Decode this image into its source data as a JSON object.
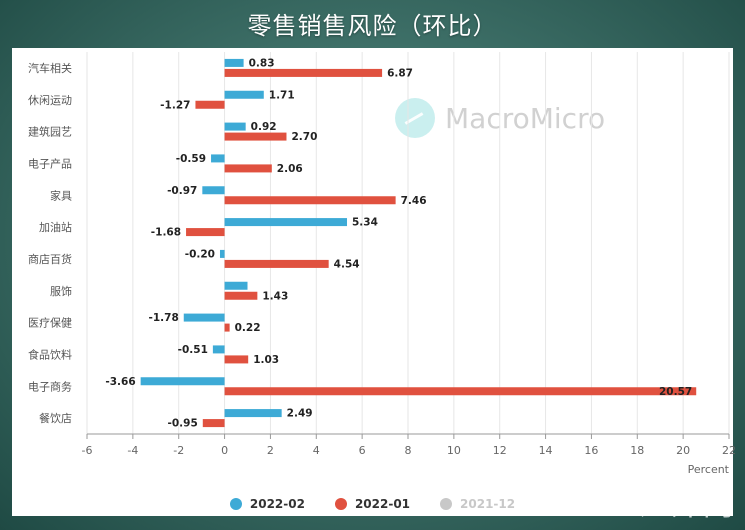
{
  "title": "零售销售风险（环比）",
  "watermark": "MacroMicro",
  "site_watermark": "汇外网",
  "legend": [
    {
      "label": "2022-02",
      "color": "#3daad6",
      "active": true
    },
    {
      "label": "2022-01",
      "color": "#e0513f",
      "active": true
    },
    {
      "label": "2021-12",
      "color": "#c8c8c8",
      "active": false
    }
  ],
  "chart_data": {
    "type": "bar",
    "orientation": "horizontal",
    "categories": [
      "汽车相关",
      "休闲运动",
      "建筑园艺",
      "电子产品",
      "家具",
      "加油站",
      "商店百货",
      "服饰",
      "医疗保健",
      "食品饮料",
      "电子商务",
      "餐饮店"
    ],
    "series": [
      {
        "name": "2022-02",
        "color": "#3daad6",
        "values": [
          0.83,
          1.71,
          0.92,
          -0.59,
          -0.97,
          5.34,
          -0.2,
          1.0,
          -1.78,
          -0.51,
          -3.66,
          2.49
        ]
      },
      {
        "name": "2022-01",
        "color": "#e0513f",
        "values": [
          6.87,
          -1.27,
          2.7,
          2.06,
          7.46,
          -1.68,
          4.54,
          1.43,
          0.22,
          1.03,
          20.57,
          -0.95
        ]
      }
    ],
    "data_labels": {
      "2022-02": [
        "0.83",
        "1.71",
        "0.92",
        "-0.59",
        "-0.97",
        "5.34",
        "-0.20",
        "",
        "-1.78",
        "-0.51",
        "-3.66",
        "2.49"
      ],
      "2022-01": [
        "6.87",
        "-1.27",
        "2.70",
        "2.06",
        "7.46",
        "-1.68",
        "4.54",
        "1.43",
        "0.22",
        "1.03",
        "20.57",
        "-0.95"
      ]
    },
    "xlim": [
      -6,
      22
    ],
    "xticks": [
      -6,
      -4,
      -2,
      0,
      2,
      4,
      6,
      8,
      10,
      12,
      14,
      16,
      18,
      20,
      22
    ],
    "xlabel": "Percent",
    "grid": true
  }
}
